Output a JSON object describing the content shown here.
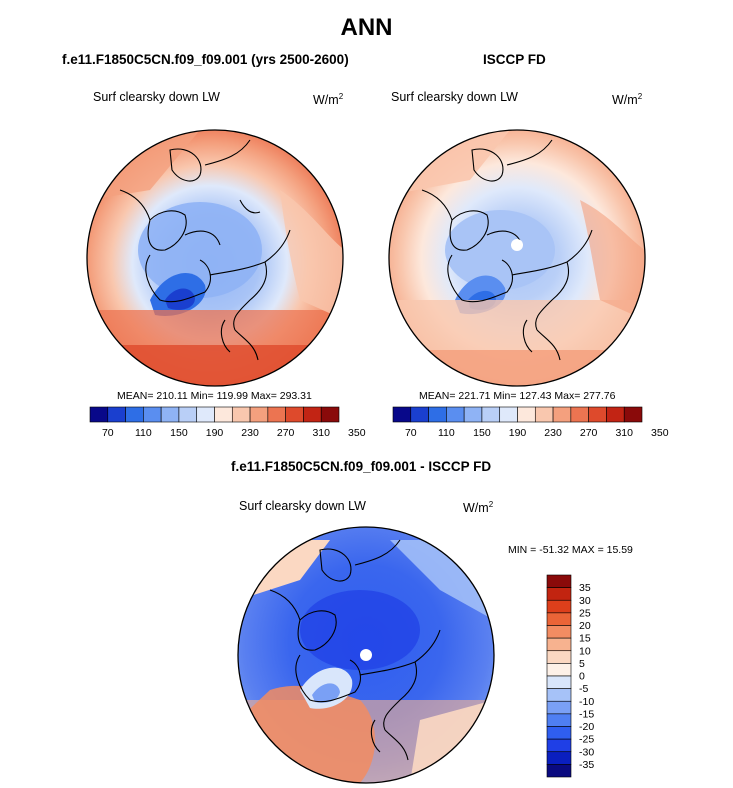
{
  "figure_title": "ANN",
  "colors": {
    "palette": [
      "#08088a",
      "#1a3fcf",
      "#2e6ee6",
      "#5a8ef0",
      "#8fb3f5",
      "#b9cff7",
      "#dfe9fb",
      "#fde8dc",
      "#f9c7ae",
      "#f4a07e",
      "#ec7451",
      "#de4a2c",
      "#c22414",
      "#8a0a0a"
    ],
    "diff_palette": [
      "#0a0a80",
      "#0a1fbf",
      "#1f3fe6",
      "#2f5ef0",
      "#4f7ff2",
      "#7aa0f5",
      "#a6c2f8",
      "#d9e6fb",
      "#fdf1e8",
      "#fbd8c2",
      "#f7b28f",
      "#f28c62",
      "#ea6437",
      "#dd3f1b",
      "#c22410",
      "#8a0a0a"
    ]
  },
  "panels": [
    {
      "title": "f.e11.F1850C5CN.f09_f09.001 (yrs 2500-2600)",
      "variable": "Surf clearsky down LW",
      "units": "W/m",
      "units_exp": "2",
      "stats": "MEAN= 210.11  Min= 119.99  Max= 293.31"
    },
    {
      "title": "ISCCP FD",
      "variable": "Surf clearsky down LW",
      "units": "W/m",
      "units_exp": "2",
      "stats": "MEAN= 221.71  Min= 127.43  Max= 277.76"
    },
    {
      "title": "f.e11.F1850C5CN.f09_f09.001 - ISCCP FD",
      "variable": "Surf clearsky down LW",
      "units": "W/m",
      "units_exp": "2",
      "stats": "MIN = -51.32 MAX =  15.59"
    }
  ],
  "chart_data": [
    {
      "type": "heatmap",
      "projection": "polar stereographic (north pole)",
      "title": "f.e11.F1850C5CN.f09_f09.001 (yrs 2500-2600)",
      "field": "Surf clearsky down LW",
      "units": "W/m^2",
      "mean": 210.11,
      "min": 119.99,
      "max": 293.31,
      "levels": [
        70,
        90,
        110,
        130,
        150,
        170,
        190,
        210,
        230,
        250,
        270,
        290,
        310,
        330,
        350
      ],
      "colorbar_labels": [
        "70",
        "110",
        "150",
        "190",
        "230",
        "270",
        "310",
        "350"
      ]
    },
    {
      "type": "heatmap",
      "projection": "polar stereographic (north pole)",
      "title": "ISCCP FD",
      "field": "Surf clearsky down LW",
      "units": "W/m^2",
      "mean": 221.71,
      "min": 127.43,
      "max": 277.76,
      "levels": [
        70,
        90,
        110,
        130,
        150,
        170,
        190,
        210,
        230,
        250,
        270,
        290,
        310,
        330,
        350
      ],
      "colorbar_labels": [
        "70",
        "110",
        "150",
        "190",
        "230",
        "270",
        "310",
        "350"
      ]
    },
    {
      "type": "heatmap",
      "projection": "polar stereographic (north pole)",
      "title": "f.e11.F1850C5CN.f09_f09.001 - ISCCP FD",
      "field": "Surf clearsky down LW",
      "units": "W/m^2",
      "min": -51.32,
      "max": 15.59,
      "levels": [
        -35,
        -30,
        -25,
        -20,
        -15,
        -10,
        -5,
        0,
        5,
        10,
        15,
        20,
        25,
        30,
        35
      ],
      "colorbar_labels": [
        "35",
        "30",
        "25",
        "20",
        "15",
        "10",
        "5",
        "0",
        "-5",
        "-10",
        "-15",
        "-20",
        "-25",
        "-30",
        "-35"
      ]
    }
  ]
}
